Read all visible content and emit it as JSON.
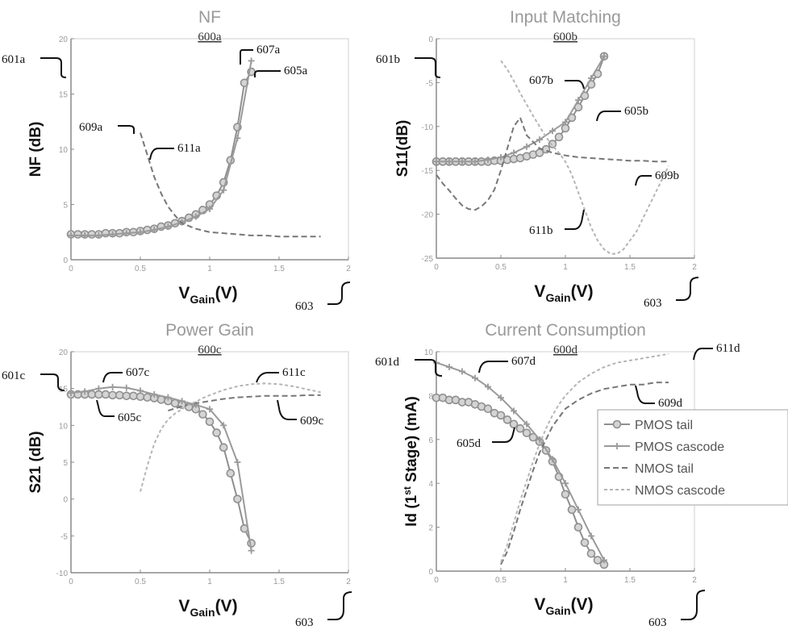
{
  "chart_data": [
    {
      "id": "a",
      "type": "line",
      "title": "NF",
      "subtitle": "600a",
      "ylabel": "NF (dB)",
      "xlabel_main": "V",
      "xlabel_sub": "Gain",
      "xlabel_unit": "(V)",
      "xlim": [
        0,
        2
      ],
      "ylim": [
        0,
        20
      ],
      "xticks": [
        "0",
        "0.5",
        "1",
        "1.5",
        "2"
      ],
      "yticks": [
        "0",
        "5",
        "10",
        "15",
        "20"
      ],
      "series": [
        {
          "key": "pmos_tail",
          "x": [
            0,
            0.05,
            0.1,
            0.15,
            0.2,
            0.25,
            0.3,
            0.35,
            0.4,
            0.45,
            0.5,
            0.55,
            0.6,
            0.65,
            0.7,
            0.75,
            0.8,
            0.85,
            0.9,
            0.95,
            1.0,
            1.05,
            1.1,
            1.15,
            1.2,
            1.25,
            1.3
          ],
          "y": [
            2.3,
            2.3,
            2.3,
            2.3,
            2.3,
            2.4,
            2.4,
            2.4,
            2.5,
            2.5,
            2.6,
            2.7,
            2.8,
            3.0,
            3.1,
            3.3,
            3.5,
            3.8,
            4.1,
            4.5,
            5.0,
            5.8,
            7.0,
            9.0,
            12.0,
            16.0,
            17.0
          ]
        },
        {
          "key": "pmos_cascode",
          "x": [
            0,
            0.1,
            0.2,
            0.3,
            0.4,
            0.5,
            0.6,
            0.7,
            0.8,
            0.9,
            1.0,
            1.1,
            1.2,
            1.3
          ],
          "y": [
            2.2,
            2.2,
            2.2,
            2.3,
            2.4,
            2.5,
            2.7,
            3.0,
            3.4,
            3.9,
            4.6,
            6.3,
            11.0,
            18.0
          ]
        },
        {
          "key": "nmos_tail",
          "x": [
            0.5,
            0.55,
            0.6,
            0.65,
            0.7,
            0.75,
            0.8,
            0.9,
            1.0,
            1.1,
            1.2,
            1.3,
            1.4,
            1.5,
            1.6,
            1.7,
            1.8
          ],
          "y": [
            11.5,
            9.5,
            7.5,
            6.0,
            4.8,
            4.0,
            3.3,
            2.8,
            2.5,
            2.4,
            2.3,
            2.2,
            2.2,
            2.1,
            2.1,
            2.1,
            2.1
          ]
        }
      ],
      "labels": [
        {
          "text": "601a",
          "target": "yaxis"
        },
        {
          "text": "607a",
          "target": "pmos_cascode_end"
        },
        {
          "text": "605a",
          "target": "pmos_tail_end"
        },
        {
          "text": "609a",
          "target": "nmos_start"
        },
        {
          "text": "611a",
          "target": "nmos_start"
        },
        {
          "text": "603",
          "target": "xaxis"
        }
      ]
    },
    {
      "id": "b",
      "type": "line",
      "title": "Input Matching",
      "subtitle": "600b",
      "ylabel": "S11(dB)",
      "xlabel_main": "V",
      "xlabel_sub": "Gain",
      "xlabel_unit": "(V)",
      "xlim": [
        0,
        2
      ],
      "ylim": [
        -25,
        0
      ],
      "xticks": [
        "0",
        "0.5",
        "1",
        "1.5",
        "2"
      ],
      "yticks": [
        "-25",
        "-20",
        "-15",
        "-10",
        "-5",
        "0"
      ],
      "series": [
        {
          "key": "pmos_tail",
          "x": [
            0,
            0.05,
            0.1,
            0.15,
            0.2,
            0.25,
            0.3,
            0.35,
            0.4,
            0.45,
            0.5,
            0.55,
            0.6,
            0.65,
            0.7,
            0.75,
            0.8,
            0.85,
            0.9,
            0.95,
            1.0,
            1.05,
            1.1,
            1.15,
            1.2,
            1.25,
            1.3
          ],
          "y": [
            -14,
            -14,
            -14,
            -14,
            -14,
            -14,
            -14,
            -14,
            -14,
            -13.9,
            -13.9,
            -13.8,
            -13.7,
            -13.6,
            -13.4,
            -13.2,
            -13.0,
            -12.6,
            -12.0,
            -11.2,
            -10.2,
            -9.0,
            -7.8,
            -6.5,
            -5.2,
            -4.0,
            -2.0
          ]
        },
        {
          "key": "pmos_cascode",
          "x": [
            0,
            0.1,
            0.2,
            0.3,
            0.4,
            0.5,
            0.6,
            0.7,
            0.8,
            0.9,
            1.0,
            1.1,
            1.2,
            1.3
          ],
          "y": [
            -14,
            -14,
            -14,
            -14,
            -13.8,
            -13.5,
            -13.0,
            -12.3,
            -11.5,
            -10.5,
            -9.5,
            -7.0,
            -4.5,
            -2.0
          ]
        },
        {
          "key": "nmos_tail",
          "x": [
            0,
            0.05,
            0.1,
            0.15,
            0.2,
            0.25,
            0.3,
            0.35,
            0.4,
            0.45,
            0.5,
            0.55,
            0.6,
            0.65,
            0.7,
            0.8,
            0.9,
            1.0,
            1.1,
            1.2,
            1.3,
            1.4,
            1.5,
            1.6,
            1.7,
            1.8
          ],
          "y": [
            -15.5,
            -16.5,
            -17.3,
            -18.2,
            -19.0,
            -19.4,
            -19.5,
            -19.1,
            -18.4,
            -17.2,
            -15.0,
            -12.5,
            -10.0,
            -9.0,
            -11.0,
            -12.5,
            -13.0,
            -13.3,
            -13.5,
            -13.6,
            -13.7,
            -13.8,
            -13.9,
            -13.9,
            -14.0,
            -14.0
          ]
        },
        {
          "key": "nmos_cascode",
          "x": [
            0.5,
            0.55,
            0.6,
            0.65,
            0.7,
            0.75,
            0.8,
            0.85,
            0.9,
            0.95,
            1.0,
            1.05,
            1.1,
            1.15,
            1.2,
            1.25,
            1.3,
            1.35,
            1.4,
            1.45,
            1.5,
            1.55,
            1.6,
            1.65,
            1.7,
            1.75,
            1.8
          ],
          "y": [
            -2.5,
            -3.5,
            -4.8,
            -6.2,
            -7.5,
            -8.8,
            -10.0,
            -11.2,
            -12.2,
            -13.0,
            -14.0,
            -15.5,
            -17.5,
            -19.5,
            -21.5,
            -23.0,
            -24.0,
            -24.5,
            -24.5,
            -24.0,
            -23.0,
            -22.0,
            -20.5,
            -19.0,
            -17.5,
            -16.0,
            -14.5
          ]
        }
      ],
      "labels": [
        {
          "text": "601b",
          "target": "yaxis"
        },
        {
          "text": "607b",
          "target": "pmos_cascode"
        },
        {
          "text": "605b",
          "target": "pmos_tail"
        },
        {
          "text": "609b",
          "target": "nmos_tail"
        },
        {
          "text": "611b",
          "target": "nmos_cascode"
        },
        {
          "text": "603",
          "target": "xaxis"
        }
      ]
    },
    {
      "id": "c",
      "type": "line",
      "title": "Power Gain",
      "subtitle": "600c",
      "ylabel": "S21 (dB)",
      "xlabel_main": "V",
      "xlabel_sub": "Gain",
      "xlabel_unit": "(V)",
      "xlim": [
        0,
        2
      ],
      "ylim": [
        -10,
        20
      ],
      "xticks": [
        "0",
        "0.5",
        "1",
        "1.5",
        "2"
      ],
      "yticks": [
        "-10",
        "-5",
        "0",
        "5",
        "10",
        "15",
        "20"
      ],
      "series": [
        {
          "key": "pmos_tail",
          "x": [
            0,
            0.05,
            0.1,
            0.15,
            0.2,
            0.25,
            0.3,
            0.35,
            0.4,
            0.45,
            0.5,
            0.55,
            0.6,
            0.65,
            0.7,
            0.75,
            0.8,
            0.85,
            0.9,
            0.95,
            1.0,
            1.05,
            1.1,
            1.15,
            1.2,
            1.25,
            1.3
          ],
          "y": [
            14.2,
            14.2,
            14.2,
            14.2,
            14.2,
            14.2,
            14.1,
            14.1,
            14.0,
            14.0,
            13.9,
            13.8,
            13.7,
            13.5,
            13.3,
            13.0,
            12.8,
            12.5,
            12.2,
            11.5,
            10.5,
            9.0,
            7.0,
            3.5,
            0.0,
            -4.0,
            -6.0
          ]
        },
        {
          "key": "pmos_cascode",
          "x": [
            0,
            0.1,
            0.2,
            0.3,
            0.4,
            0.5,
            0.6,
            0.7,
            0.8,
            0.9,
            1.0,
            1.1,
            1.2,
            1.3
          ],
          "y": [
            14.4,
            14.6,
            15.0,
            15.2,
            15.1,
            14.7,
            14.2,
            13.8,
            13.3,
            12.8,
            12.2,
            10.0,
            5.0,
            -7.0
          ]
        },
        {
          "key": "nmos_tail",
          "x": [
            0.7,
            0.8,
            0.9,
            1.0,
            1.1,
            1.2,
            1.3,
            1.4,
            1.5,
            1.6,
            1.7,
            1.8
          ],
          "y": [
            12.0,
            12.6,
            13.0,
            13.3,
            13.6,
            13.8,
            13.9,
            14.0,
            14.0,
            14.0,
            14.1,
            14.1
          ]
        },
        {
          "key": "nmos_cascode",
          "x": [
            0.5,
            0.55,
            0.6,
            0.65,
            0.7,
            0.75,
            0.8,
            0.85,
            0.9,
            0.95,
            1.0,
            1.1,
            1.2,
            1.3,
            1.4,
            1.5,
            1.6,
            1.7,
            1.8
          ],
          "y": [
            1.0,
            4.5,
            7.5,
            9.5,
            10.8,
            11.6,
            12.2,
            12.8,
            13.2,
            13.7,
            14.1,
            14.8,
            15.3,
            15.6,
            15.7,
            15.6,
            15.3,
            14.9,
            14.5
          ]
        }
      ],
      "labels": [
        {
          "text": "601c",
          "target": "yaxis"
        },
        {
          "text": "607c",
          "target": "pmos_cascode"
        },
        {
          "text": "605c",
          "target": "pmos_tail"
        },
        {
          "text": "611c",
          "target": "nmos_cascode"
        },
        {
          "text": "609c",
          "target": "nmos_tail"
        },
        {
          "text": "603",
          "target": "xaxis"
        }
      ]
    },
    {
      "id": "d",
      "type": "line",
      "title": "Current Consumption",
      "subtitle": "600d",
      "ylabel_parts": [
        "Id (1",
        "st",
        " Stage) (mA)"
      ],
      "xlabel_main": "V",
      "xlabel_sub": "Gain",
      "xlabel_unit": "(V)",
      "xlim": [
        0,
        2
      ],
      "ylim": [
        0,
        10
      ],
      "xticks": [
        "0",
        "0.5",
        "1",
        "1.5",
        "2"
      ],
      "yticks": [
        "0",
        "2",
        "4",
        "6",
        "8",
        "10"
      ],
      "series": [
        {
          "key": "pmos_tail",
          "x": [
            0,
            0.05,
            0.1,
            0.15,
            0.2,
            0.25,
            0.3,
            0.35,
            0.4,
            0.45,
            0.5,
            0.55,
            0.6,
            0.65,
            0.7,
            0.75,
            0.8,
            0.85,
            0.9,
            0.95,
            1.0,
            1.05,
            1.1,
            1.15,
            1.2,
            1.25,
            1.3
          ],
          "y": [
            7.9,
            7.9,
            7.8,
            7.8,
            7.7,
            7.7,
            7.6,
            7.5,
            7.4,
            7.2,
            7.1,
            6.9,
            6.7,
            6.5,
            6.3,
            6.1,
            5.9,
            5.5,
            5.0,
            4.3,
            3.5,
            2.8,
            2.0,
            1.3,
            0.8,
            0.5,
            0.3
          ]
        },
        {
          "key": "pmos_cascode",
          "x": [
            0,
            0.1,
            0.2,
            0.3,
            0.4,
            0.5,
            0.6,
            0.7,
            0.8,
            0.9,
            1.0,
            1.1,
            1.2,
            1.3
          ],
          "y": [
            9.5,
            9.3,
            9.1,
            8.8,
            8.4,
            7.9,
            7.3,
            6.7,
            6.0,
            5.1,
            4.0,
            2.8,
            1.6,
            0.5
          ]
        },
        {
          "key": "nmos_tail",
          "x": [
            0.5,
            0.55,
            0.6,
            0.65,
            0.7,
            0.75,
            0.8,
            0.85,
            0.9,
            0.95,
            1.0,
            1.1,
            1.2,
            1.3,
            1.4,
            1.5,
            1.6,
            1.7,
            1.8
          ],
          "y": [
            0.3,
            0.9,
            1.8,
            2.8,
            3.7,
            4.6,
            5.4,
            6.0,
            6.6,
            7.0,
            7.4,
            7.8,
            8.1,
            8.3,
            8.4,
            8.5,
            8.5,
            8.6,
            8.6
          ]
        },
        {
          "key": "nmos_cascode",
          "x": [
            0.5,
            0.55,
            0.6,
            0.65,
            0.7,
            0.75,
            0.8,
            0.85,
            0.9,
            0.95,
            1.0,
            1.1,
            1.2,
            1.3,
            1.4,
            1.5,
            1.6,
            1.7,
            1.8
          ],
          "y": [
            0.4,
            1.2,
            2.2,
            3.2,
            4.1,
            5.0,
            5.8,
            6.5,
            7.1,
            7.6,
            8.0,
            8.6,
            9.0,
            9.3,
            9.5,
            9.6,
            9.7,
            9.8,
            9.9
          ]
        }
      ],
      "labels": [
        {
          "text": "601d",
          "target": "yaxis"
        },
        {
          "text": "607d",
          "target": "pmos_cascode"
        },
        {
          "text": "611d",
          "target": "nmos_cascode"
        },
        {
          "text": "609d",
          "target": "nmos_tail"
        },
        {
          "text": "605d",
          "target": "pmos_tail"
        },
        {
          "text": "603",
          "target": "xaxis"
        }
      ],
      "legend": {
        "placement": "right",
        "entries": [
          {
            "key": "pmos_tail",
            "label": "PMOS tail"
          },
          {
            "key": "pmos_cascode",
            "label": "PMOS cascode"
          },
          {
            "key": "nmos_tail",
            "label": "NMOS tail"
          },
          {
            "key": "nmos_cascode",
            "label": "NMOS cascode"
          }
        ]
      }
    }
  ],
  "styles": {
    "pmos_tail": {
      "color": "#8f8f8f",
      "marker": "circle",
      "dash": ""
    },
    "pmos_cascode": {
      "color": "#9a9a9a",
      "marker": "plus",
      "dash": ""
    },
    "nmos_tail": {
      "color": "#777777",
      "marker": "none",
      "dash": "7,4"
    },
    "nmos_cascode": {
      "color": "#b5b5b5",
      "marker": "none",
      "dash": "4,3"
    }
  }
}
